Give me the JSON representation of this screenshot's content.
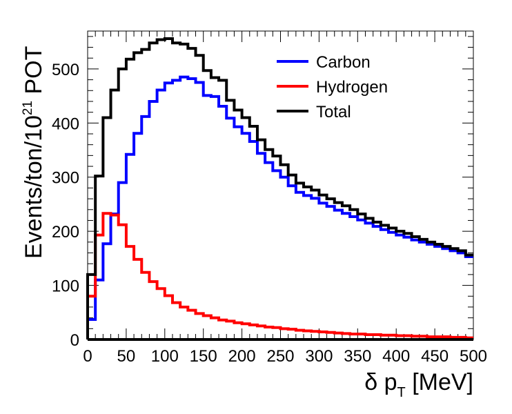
{
  "chart_data": {
    "type": "line",
    "style": "histogram-step",
    "ylabel": {
      "base": "Events/ton/10",
      "superscript": "21",
      "suffix": " POT"
    },
    "xlabel": {
      "symbol": "δ p",
      "subscript": "T",
      "unit": " [MeV]"
    },
    "xlim": [
      0,
      500
    ],
    "ylim": [
      0,
      570
    ],
    "bin_width": 10,
    "x_ticks": [
      0,
      50,
      100,
      150,
      200,
      250,
      300,
      350,
      400,
      450,
      500
    ],
    "y_ticks": [
      0,
      100,
      200,
      300,
      400,
      500
    ],
    "grid": false,
    "legend_position": "top-right",
    "series": [
      {
        "name": "Carbon",
        "color": "#0000ff",
        "values": [
          37,
          110,
          177,
          232,
          290,
          342,
          381,
          412,
          440,
          461,
          474,
          479,
          485,
          482,
          475,
          451,
          449,
          431,
          409,
          393,
          381,
          366,
          344,
          327,
          312,
          300,
          284,
          272,
          266,
          261,
          252,
          246,
          239,
          233,
          227,
          221,
          215,
          209,
          203,
          198,
          193,
          189,
          184,
          180,
          176,
          172,
          168,
          164,
          160,
          153
        ]
      },
      {
        "name": "Hydrogen",
        "color": "#ff0000",
        "values": [
          80,
          193,
          233,
          230,
          212,
          172,
          148,
          124,
          107,
          94,
          81,
          68,
          60,
          54,
          48,
          44,
          40,
          36,
          34,
          31,
          29,
          27,
          25,
          23,
          22,
          20,
          19,
          17,
          16,
          15,
          14,
          13,
          12,
          11,
          10,
          10,
          9,
          9,
          8,
          8,
          7,
          7,
          6,
          6,
          5,
          5,
          5,
          4,
          4,
          3
        ]
      },
      {
        "name": "Total",
        "color": "#000000",
        "values": [
          120,
          302,
          410,
          461,
          500,
          518,
          530,
          536,
          548,
          554,
          556,
          548,
          546,
          538,
          525,
          497,
          484,
          479,
          442,
          424,
          410,
          394,
          369,
          351,
          339,
          323,
          304,
          289,
          282,
          276,
          267,
          260,
          253,
          247,
          240,
          232,
          224,
          217,
          211,
          206,
          200,
          196,
          190,
          185,
          180,
          176,
          172,
          168,
          164,
          156
        ]
      }
    ]
  }
}
